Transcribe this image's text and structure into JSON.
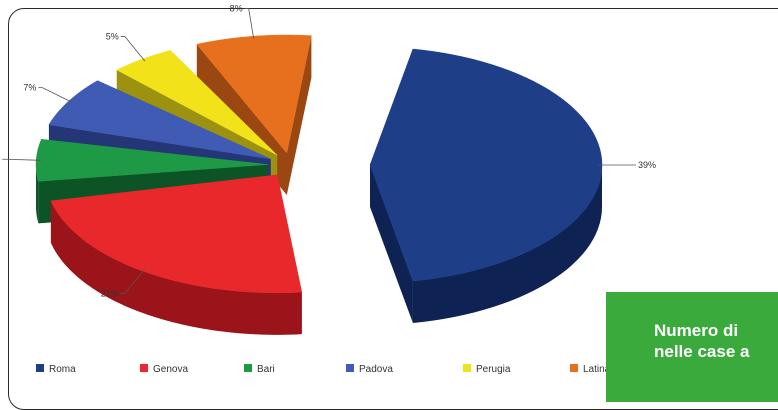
{
  "chart_data": {
    "type": "pie",
    "title": "",
    "categories": [
      "Roma",
      "Genova",
      "Bari",
      "Padova",
      "Perugia",
      "Latina"
    ],
    "values": [
      39,
      21,
      6,
      7,
      5,
      8
    ],
    "labels": [
      "39%",
      "21%",
      "6%",
      "7%",
      "5%",
      "8%"
    ],
    "colors": [
      "#1e3f88",
      "#e8282b",
      "#1e9a46",
      "#3f5bb4",
      "#f2e21a",
      "#e7701f"
    ],
    "dark_colors": [
      "#0f2254",
      "#9a1419",
      "#0c5426",
      "#243675",
      "#9c9210",
      "#9a4712"
    ],
    "legend": "bottom",
    "style": "3d-exploded"
  },
  "caption": {
    "text": "Numero di\nnelle case a"
  }
}
